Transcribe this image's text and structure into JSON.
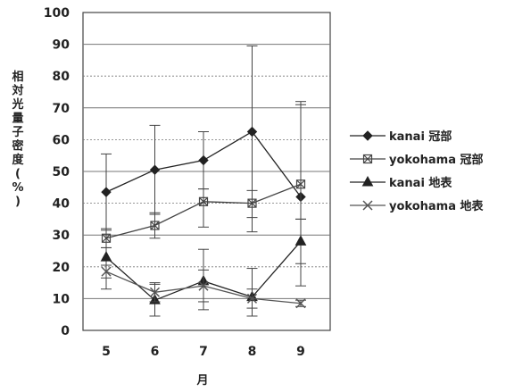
{
  "chart_data": {
    "type": "line",
    "x": [
      "5",
      "6",
      "7",
      "8",
      "9"
    ],
    "xlabel": "月",
    "ylabel": "相対光量子密度(%)",
    "ylim": [
      0,
      100
    ],
    "yticks": [
      "0",
      "10",
      "20",
      "30",
      "40",
      "50",
      "60",
      "70",
      "80",
      "90",
      "100"
    ],
    "grid": true,
    "legend_position": "right",
    "series": [
      {
        "name": "kanai 冠部",
        "marker": "diamond",
        "color": "#222222",
        "values": [
          43.5,
          50.5,
          53.5,
          62.5,
          42
        ],
        "err_low": [
          12,
          14,
          9,
          27,
          7
        ],
        "err_high": [
          12,
          14,
          9,
          27,
          30
        ]
      },
      {
        "name": "yokohama 冠部",
        "marker": "square-x",
        "color": "#444444",
        "values": [
          29,
          33,
          40.5,
          40,
          46
        ],
        "err_low": [
          3,
          4,
          8,
          9,
          25
        ],
        "err_high": [
          3,
          4,
          4,
          4,
          25
        ]
      },
      {
        "name": "kanai 地表",
        "marker": "triangle",
        "color": "#222222",
        "values": [
          23,
          9.5,
          15.5,
          10.5,
          28
        ],
        "err_low": [
          10,
          5,
          9,
          6,
          14
        ],
        "err_high": [
          3,
          5,
          10,
          9,
          7
        ]
      },
      {
        "name": "yokohama 地表",
        "marker": "x",
        "color": "#555555",
        "values": [
          18.5,
          12,
          14,
          10,
          8.5
        ],
        "err_low": [
          2,
          3,
          5,
          3,
          1
        ],
        "err_high": [
          2,
          3,
          5,
          3,
          1
        ]
      }
    ]
  }
}
